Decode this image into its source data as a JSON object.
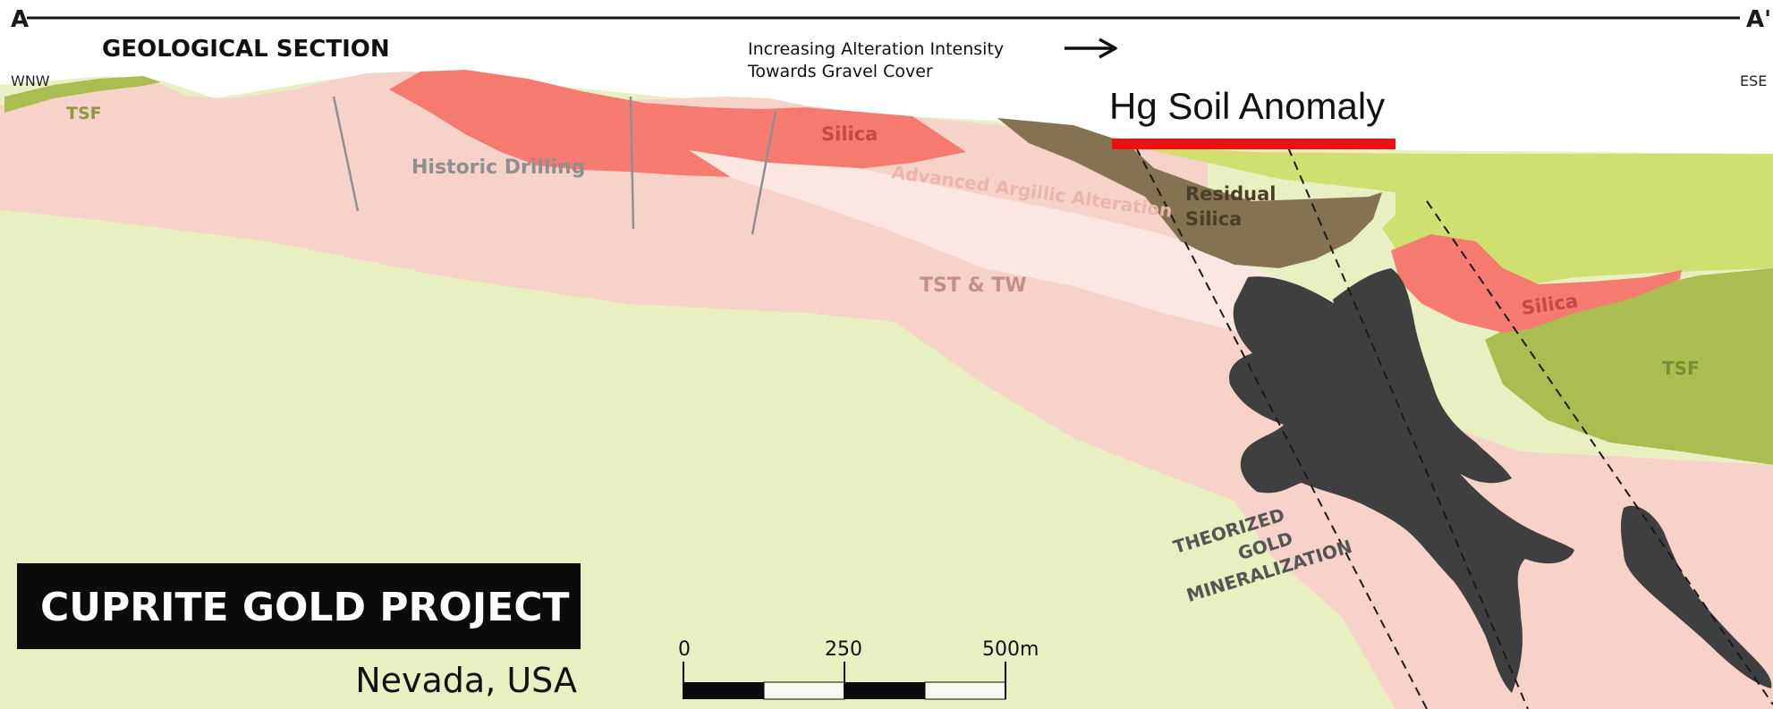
{
  "section": {
    "start_letter": "A",
    "end_letter": "A'",
    "title": "GEOLOGICAL SECTION",
    "west_label": "WNW",
    "east_label": "ESE",
    "trend_line1": "Increasing Alteration Intensity",
    "trend_line2": "Towards Gravel Cover",
    "anomaly_label": "Hg Soil Anomaly"
  },
  "units": {
    "tsf_west": "TSF",
    "tsf_east": "TSF",
    "silica_top": "Silica",
    "silica_east": "Silica",
    "historic_drilling": "Historic Drilling",
    "argillic": "Advanced Argillic Alteration",
    "residual_line1": "Residual",
    "residual_line2": "Silica",
    "tst_tw": "TST & TW",
    "gold_line1": "THEORIZED",
    "gold_line2": "GOLD",
    "gold_line3": "MINERALIZATION"
  },
  "project": {
    "name": "CUPRITE GOLD PROJECT",
    "location": "Nevada, USA"
  },
  "scale_bar": {
    "labels": [
      "0",
      "250",
      "500m"
    ]
  },
  "colors": {
    "gravel": "#e8f0c2",
    "tuff_pink": "#f7d2c8",
    "argillic": "#fbe6e0",
    "silica": "#f57a70",
    "residual_silica": "#857252",
    "tsf_bright": "#cfe070",
    "tsf_dark": "#a9bd50",
    "mineralization": "#3f3f3f",
    "anomaly_bar": "#ee1111"
  }
}
